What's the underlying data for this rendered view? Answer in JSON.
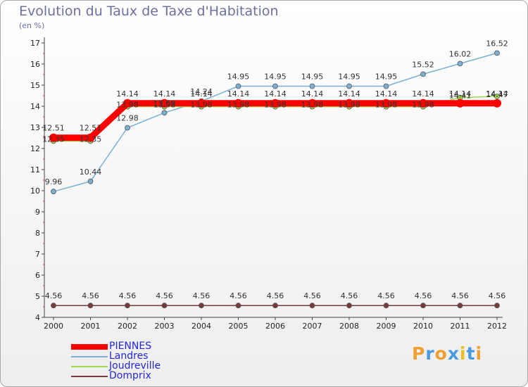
{
  "header": {
    "title": "Evolution du Taux de Taxe d'Habitation",
    "unit": "(en %)"
  },
  "logo": {
    "text": [
      "P",
      "r",
      "o",
      "x",
      "i",
      "t",
      "i"
    ],
    "colors": [
      "#f0a030",
      "#4a9ae0",
      "#f0a030",
      "#4a9ae0",
      "#e8c020",
      "#4a9ae0",
      "#f0a030"
    ]
  },
  "chart_data": {
    "type": "line",
    "title": "Evolution du Taux de Taxe d'Habitation",
    "ylabel": "(en %)",
    "xlabel": "",
    "categories": [
      "2000",
      "2001",
      "2002",
      "2003",
      "2004",
      "2005",
      "2006",
      "2007",
      "2008",
      "2009",
      "2010",
      "2011",
      "2012"
    ],
    "ylim": [
      4,
      17
    ],
    "yticks": [
      "4",
      "5",
      "6",
      "7",
      "8",
      "9",
      "10",
      "11",
      "12",
      "13",
      "14",
      "15",
      "16",
      "17"
    ],
    "grid": false,
    "legend_position": "bottom-left",
    "series": [
      {
        "name": "PIENNES",
        "color": "#ff0000",
        "values": [
          12.51,
          12.51,
          14.14,
          14.14,
          14.14,
          14.14,
          14.14,
          14.14,
          14.14,
          14.14,
          14.14,
          14.14,
          14.14
        ],
        "labels": [
          "12.51",
          "12.51",
          "14.14",
          "14.14",
          "14.14",
          "14.14",
          "14.14",
          "14.14",
          "14.14",
          "14.14",
          "14.14",
          "14.14",
          "14.14"
        ]
      },
      {
        "name": "Landres",
        "color": "#7ab0d4",
        "values": [
          9.96,
          10.44,
          12.98,
          13.69,
          14.24,
          14.95,
          14.95,
          14.95,
          14.95,
          14.95,
          15.52,
          16.02,
          16.52
        ],
        "labels": [
          "9.96",
          "10.44",
          "12.98",
          "13.69",
          "14.24",
          "14.95",
          "14.95",
          "14.95",
          "14.95",
          "14.95",
          "15.52",
          "16.02",
          "16.52"
        ]
      },
      {
        "name": "Joudreville",
        "color": "#9ed94a",
        "values": [
          12.35,
          12.35,
          13.98,
          13.98,
          13.98,
          13.98,
          13.98,
          13.98,
          13.98,
          13.98,
          13.98,
          14.41,
          14.47
        ],
        "labels": [
          "12.35",
          "12.35",
          "13.98",
          "13.98",
          "13.98",
          "13.98",
          "13.98",
          "13.98",
          "13.98",
          "13.98",
          "13.98",
          "14.41",
          "14.47"
        ]
      },
      {
        "name": "Domprix",
        "color": "#7a3a3a",
        "values": [
          4.56,
          4.56,
          4.56,
          4.56,
          4.56,
          4.56,
          4.56,
          4.56,
          4.56,
          4.56,
          4.56,
          4.56,
          4.56
        ],
        "labels": [
          "4.56",
          "4.56",
          "4.56",
          "4.56",
          "4.56",
          "4.56",
          "4.56",
          "4.56",
          "4.56",
          "4.56",
          "4.56",
          "4.56",
          "4.56"
        ]
      }
    ]
  }
}
